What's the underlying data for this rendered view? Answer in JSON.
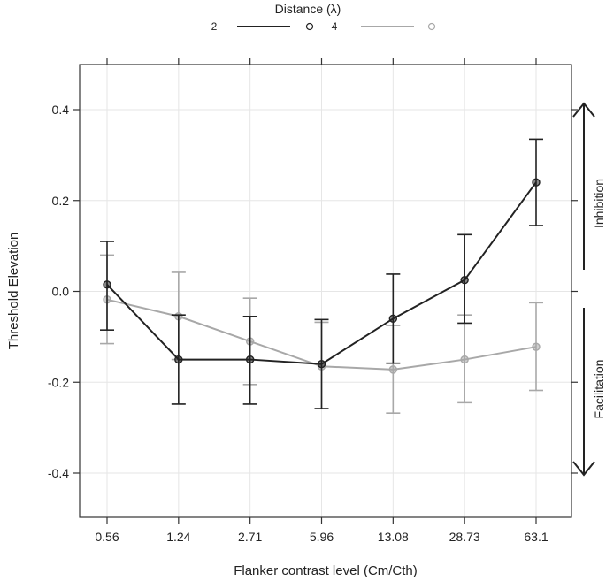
{
  "chart_data": {
    "type": "line",
    "title": "",
    "xlabel": "Flanker contrast level (Cm/Cth)",
    "ylabel": "Threshold Elevation",
    "categories": [
      "0.56",
      "1.24",
      "2.71",
      "5.96",
      "13.08",
      "28.73",
      "63.1"
    ],
    "ylim": [
      -0.5,
      0.5
    ],
    "yticks": [
      -0.4,
      -0.2,
      0.0,
      0.2,
      0.4
    ],
    "ytick_labels": [
      "-0.4",
      "-0.2",
      "0.0",
      "0.2",
      "0.4"
    ],
    "grid": true,
    "legend": {
      "title": "Distance (λ)",
      "placement": "top"
    },
    "series": [
      {
        "name": "2",
        "color": "#222222",
        "values": [
          0.015,
          -0.15,
          -0.15,
          -0.16,
          -0.06,
          0.025,
          0.24
        ],
        "err_lower": [
          -0.085,
          -0.248,
          -0.248,
          -0.258,
          -0.158,
          -0.07,
          0.145
        ],
        "err_upper": [
          0.11,
          -0.052,
          -0.055,
          -0.062,
          0.038,
          0.125,
          0.335
        ]
      },
      {
        "name": "4",
        "color": "#a8a8a8",
        "values": [
          -0.018,
          -0.055,
          -0.11,
          -0.165,
          -0.172,
          -0.15,
          -0.122
        ],
        "err_lower": [
          -0.115,
          -0.15,
          -0.205,
          -0.258,
          -0.268,
          -0.245,
          -0.218
        ],
        "err_upper": [
          0.08,
          0.042,
          -0.015,
          -0.068,
          -0.075,
          -0.052,
          -0.025
        ]
      }
    ],
    "annotations": {
      "upper": "Inhibition",
      "lower": "Facilitation"
    }
  }
}
